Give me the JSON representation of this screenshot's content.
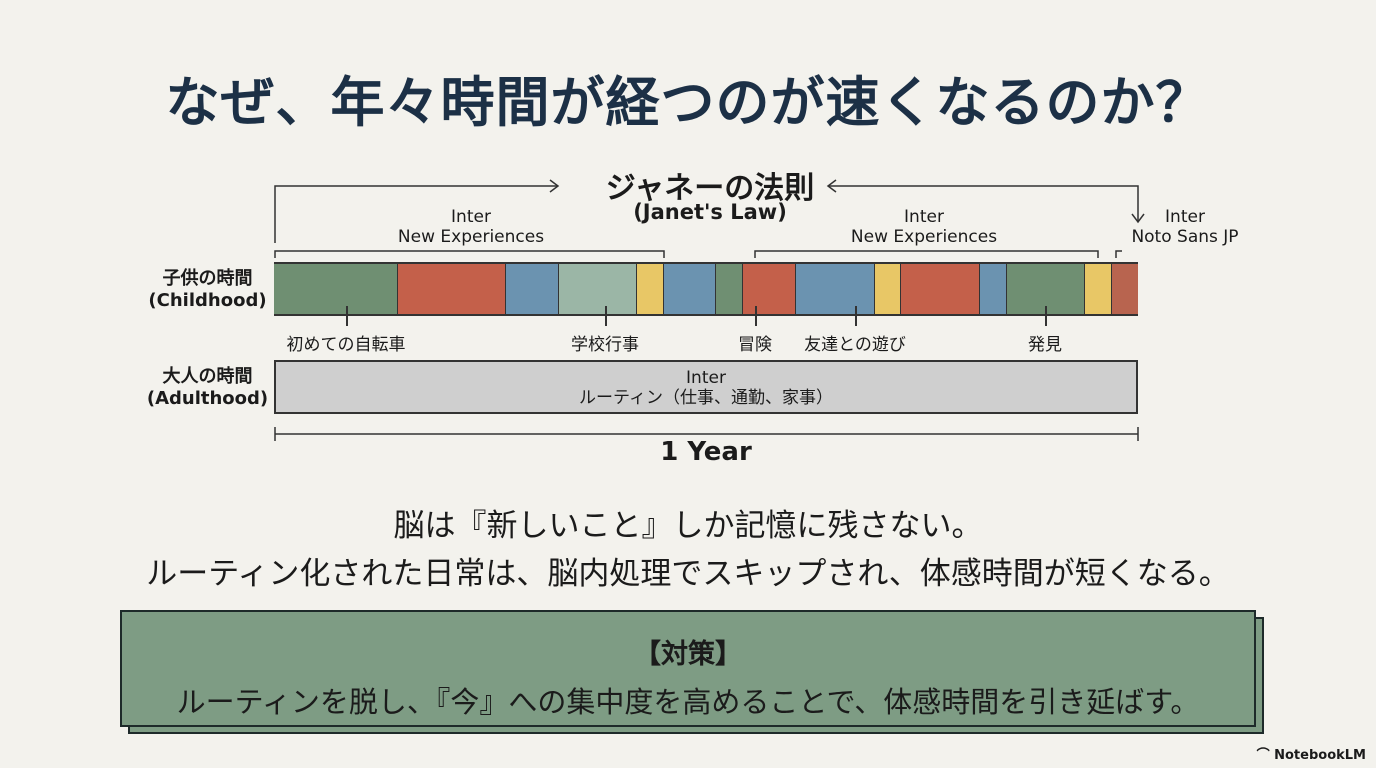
{
  "title": "なぜ、年々時間が経つのが速くなるのか？",
  "law": {
    "title": "ジャネーの法則",
    "subtitle": "(Janet's Law)"
  },
  "brackets": {
    "left": {
      "line1": "Inter",
      "line2": "New Experiences"
    },
    "right": {
      "line1": "Inter",
      "line2": "New Experiences"
    },
    "far_right": {
      "line1": "Inter",
      "line2": "Noto Sans JP"
    }
  },
  "childhood": {
    "label": "子供の時間",
    "label_en": "(Childhood)",
    "segment_colors": [
      "#6f8f72",
      "#c4604a",
      "#6b93b0",
      "#9bb6a6",
      "#e8c766",
      "#6b93b0",
      "#6f8f72",
      "#c4604a",
      "#6b93b0",
      "#e8c766",
      "#c4604a",
      "#6b93b0",
      "#6f8f72",
      "#e8c766",
      "#b8644f"
    ],
    "events": [
      "初めての自転車",
      "学校行事",
      "冒険",
      "友達との遊び",
      "発見"
    ]
  },
  "adulthood": {
    "label": "大人の時間",
    "label_en": "(Adulthood)",
    "line1": "Inter",
    "line2": "ルーティン（仕事、通勤、家事）",
    "color": "#cfcfcf"
  },
  "span_label": "1 Year",
  "body": {
    "line1": "脳は『新しいこと』しか記憶に残さない。",
    "line2": "ルーティン化された日常は、脳内処理でスキップされ、体感時間が短くなる。"
  },
  "callout": {
    "heading": "【対策】",
    "text": "ルーティンを脱し、『今』への集中度を高めることで、体感時間を引き延ばす。",
    "color": "#7e9c84"
  },
  "branding": {
    "logo": "NotebookLM"
  }
}
